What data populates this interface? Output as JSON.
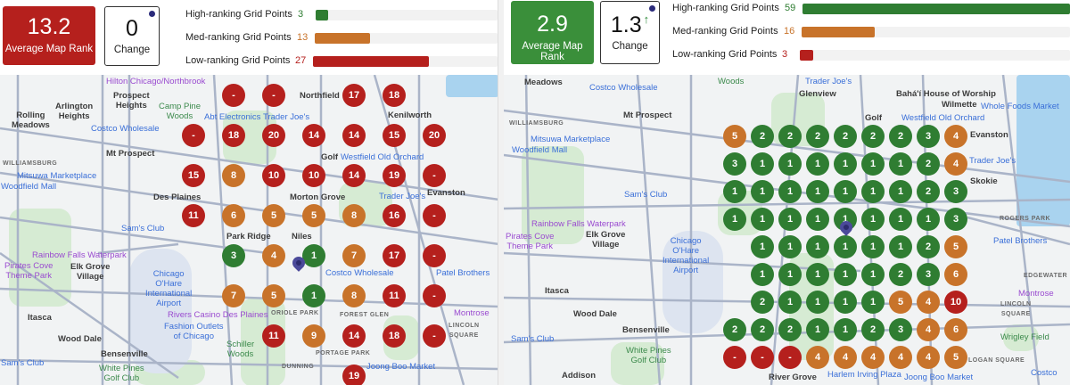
{
  "colors": {
    "high": "#2f7d32",
    "med": "#c8732a",
    "low": "#b5201d",
    "track": "#f2f2f2"
  },
  "panels": [
    {
      "avg_rank": {
        "value": "13.2",
        "label": "Average Map Rank",
        "color": "#b5201d"
      },
      "change": {
        "value": "0",
        "label": "Change",
        "trend": ""
      },
      "bars": [
        {
          "label": "High-ranking Grid Points",
          "count": "3",
          "max": 43,
          "level": "high"
        },
        {
          "label": "Med-ranking Grid Points",
          "count": "13",
          "max": 43,
          "level": "med"
        },
        {
          "label": "Low-ranking Grid Points",
          "count": "27",
          "max": 43,
          "level": "low"
        }
      ],
      "grid": [
        [
          null,
          "-",
          "-",
          null,
          "17",
          "18",
          null
        ],
        [
          "-",
          "18",
          "20",
          "14",
          "14",
          "15",
          "20"
        ],
        [
          "15",
          "8",
          "10",
          "10",
          "14",
          "19",
          "-"
        ],
        [
          "11",
          "6",
          "5",
          "5",
          "8",
          "16",
          "-"
        ],
        [
          null,
          "3",
          "4",
          "1",
          "7",
          "17",
          "-"
        ],
        [
          null,
          "7",
          "5",
          "1",
          "8",
          "11",
          "-"
        ],
        [
          null,
          null,
          "11",
          "9",
          "14",
          "18",
          "-"
        ],
        [
          null,
          null,
          null,
          null,
          "19",
          null,
          null
        ]
      ],
      "map_labels": [
        {
          "text": "Hilton Chicago/Northbrook",
          "kind": "purple"
        },
        {
          "text": "Prospect\nHeights",
          "kind": "dark"
        },
        {
          "text": "Arlington\nHeights",
          "kind": "dark"
        },
        {
          "text": "Rolling\nMeadows",
          "kind": "dark"
        },
        {
          "text": "Costco Wholesale",
          "kind": "blue"
        },
        {
          "text": "Mt Prospect",
          "kind": "dark"
        },
        {
          "text": "WILLIAMSBURG",
          "kind": "small"
        },
        {
          "text": "Mitsuwa Marketplace",
          "kind": "blue"
        },
        {
          "text": "Woodfield Mall",
          "kind": "blue"
        },
        {
          "text": "Sam's Club",
          "kind": "blue"
        },
        {
          "text": "Rainbow Falls Waterpark",
          "kind": "purple"
        },
        {
          "text": "Pirates Cove\nTheme Park",
          "kind": "purple"
        },
        {
          "text": "Elk Grove\nVillage",
          "kind": "dark"
        },
        {
          "text": "Chicago\nO'Hare\nInternational\nAirport",
          "kind": "blue"
        },
        {
          "text": "Itasca",
          "kind": "dark"
        },
        {
          "text": "Wood Dale",
          "kind": "dark"
        },
        {
          "text": "Bensenville",
          "kind": "dark"
        },
        {
          "text": "Sam's Club",
          "kind": "blue"
        },
        {
          "text": "White Pines\nGolf Club",
          "kind": "green"
        },
        {
          "text": "Camp Pine\nWoods",
          "kind": "green"
        },
        {
          "text": "Abt Electronics",
          "kind": "blue"
        },
        {
          "text": "Trader Joe's",
          "kind": "blue"
        },
        {
          "text": "Northfield",
          "kind": "dark"
        },
        {
          "text": "Kenilworth",
          "kind": "dark"
        },
        {
          "text": "Golf",
          "kind": "dark"
        },
        {
          "text": "Westfield Old Orchard",
          "kind": "blue"
        },
        {
          "text": "Evanston",
          "kind": "dark"
        },
        {
          "text": "Des Plaines",
          "kind": "dark"
        },
        {
          "text": "Morton Grove",
          "kind": "dark"
        },
        {
          "text": "Trader Joe's",
          "kind": "blue"
        },
        {
          "text": "Niles",
          "kind": "dark"
        },
        {
          "text": "Costco Wholesale",
          "kind": "blue"
        },
        {
          "text": "Park Ridge",
          "kind": "dark"
        },
        {
          "text": "Rivers Casino Des Plaines",
          "kind": "purple"
        },
        {
          "text": "Fashion Outlets\nof Chicago",
          "kind": "blue"
        },
        {
          "text": "Schiller\nWoods",
          "kind": "green"
        },
        {
          "text": "FOREST GLEN",
          "kind": "small"
        },
        {
          "text": "ORIOLE PARK",
          "kind": "small"
        },
        {
          "text": "PORTAGE PARK",
          "kind": "small"
        },
        {
          "text": "DUNNING",
          "kind": "small"
        },
        {
          "text": "Joong Boo Market",
          "kind": "blue"
        },
        {
          "text": "Patel Brothers",
          "kind": "blue"
        },
        {
          "text": "LINCOLN\nSQUARE",
          "kind": "small"
        },
        {
          "text": "Montrose",
          "kind": "purple"
        }
      ]
    },
    {
      "avg_rank": {
        "value": "2.9",
        "label": "Average Map Rank",
        "color": "#3a8f3a"
      },
      "change": {
        "value": "1.3",
        "label": "Change",
        "trend": "↑"
      },
      "bars": [
        {
          "label": "High-ranking Grid Points",
          "count": "59",
          "max": 59,
          "level": "high"
        },
        {
          "label": "Med-ranking Grid Points",
          "count": "16",
          "max": 59,
          "level": "med"
        },
        {
          "label": "Low-ranking Grid Points",
          "count": "3",
          "max": 59,
          "level": "low"
        }
      ],
      "grid": [
        [
          "5",
          "2",
          "2",
          "2",
          "2",
          "2",
          "2",
          "3",
          "4"
        ],
        [
          "3",
          "1",
          "1",
          "1",
          "1",
          "1",
          "1",
          "2",
          "4"
        ],
        [
          "1",
          "1",
          "1",
          "1",
          "1",
          "1",
          "1",
          "2",
          "3"
        ],
        [
          "1",
          "1",
          "1",
          "1",
          "1",
          "1",
          "1",
          "1",
          "3"
        ],
        [
          null,
          "1",
          "1",
          "1",
          "1",
          "1",
          "1",
          "2",
          "5"
        ],
        [
          null,
          "1",
          "1",
          "1",
          "1",
          "1",
          "2",
          "3",
          "6"
        ],
        [
          null,
          "2",
          "1",
          "1",
          "1",
          "1",
          "5",
          "4",
          "10"
        ],
        [
          "2",
          "2",
          "2",
          "1",
          "1",
          "2",
          "3",
          "4",
          "6"
        ],
        [
          "-",
          "-",
          "-",
          "4",
          "4",
          "4",
          "4",
          "4",
          "5"
        ]
      ],
      "map_labels": [
        {
          "text": "Meadows",
          "kind": "dark"
        },
        {
          "text": "Costco Wholesale",
          "kind": "blue"
        },
        {
          "text": "Mt Prospect",
          "kind": "dark"
        },
        {
          "text": "WILLIAMSBURG",
          "kind": "small"
        },
        {
          "text": "Mitsuwa Marketplace",
          "kind": "blue"
        },
        {
          "text": "Woodfield Mall",
          "kind": "blue"
        },
        {
          "text": "Sam's Club",
          "kind": "blue"
        },
        {
          "text": "Rainbow Falls Waterpark",
          "kind": "purple"
        },
        {
          "text": "Pirates Cove\nTheme Park",
          "kind": "purple"
        },
        {
          "text": "Elk Grove\nVillage",
          "kind": "dark"
        },
        {
          "text": "Chicago\nO'Hare\nInternational\nAirport",
          "kind": "blue"
        },
        {
          "text": "Itasca",
          "kind": "dark"
        },
        {
          "text": "Wood Dale",
          "kind": "dark"
        },
        {
          "text": "Bensenville",
          "kind": "dark"
        },
        {
          "text": "Sam's Club",
          "kind": "blue"
        },
        {
          "text": "White Pines\nGolf Club",
          "kind": "green"
        },
        {
          "text": "Addison",
          "kind": "dark"
        },
        {
          "text": "River Grove",
          "kind": "dark"
        },
        {
          "text": "Woods",
          "kind": "green"
        },
        {
          "text": "Trader Joe's",
          "kind": "blue"
        },
        {
          "text": "Glenview",
          "kind": "dark"
        },
        {
          "text": "Golf",
          "kind": "dark"
        },
        {
          "text": "Bahá'í House of Worship",
          "kind": "dark"
        },
        {
          "text": "Wilmette",
          "kind": "dark"
        },
        {
          "text": "Whole Foods Market",
          "kind": "blue"
        },
        {
          "text": "Westfield Old Orchard",
          "kind": "blue"
        },
        {
          "text": "Evanston",
          "kind": "dark"
        },
        {
          "text": "Trader Joe's",
          "kind": "blue"
        },
        {
          "text": "Skokie",
          "kind": "dark"
        },
        {
          "text": "ROGERS PARK",
          "kind": "small"
        },
        {
          "text": "Patel Brothers",
          "kind": "blue"
        },
        {
          "text": "EDGEWATER",
          "kind": "small"
        },
        {
          "text": "LINCOLN\nSQUARE",
          "kind": "small"
        },
        {
          "text": "Montrose",
          "kind": "purple"
        },
        {
          "text": "Wrigley Field",
          "kind": "green"
        },
        {
          "text": "Harlem Irving Plaza",
          "kind": "blue"
        },
        {
          "text": "Joong Boo Market",
          "kind": "blue"
        },
        {
          "text": "Costco",
          "kind": "blue"
        },
        {
          "text": "LOGAN SQUARE",
          "kind": "small"
        }
      ]
    }
  ]
}
